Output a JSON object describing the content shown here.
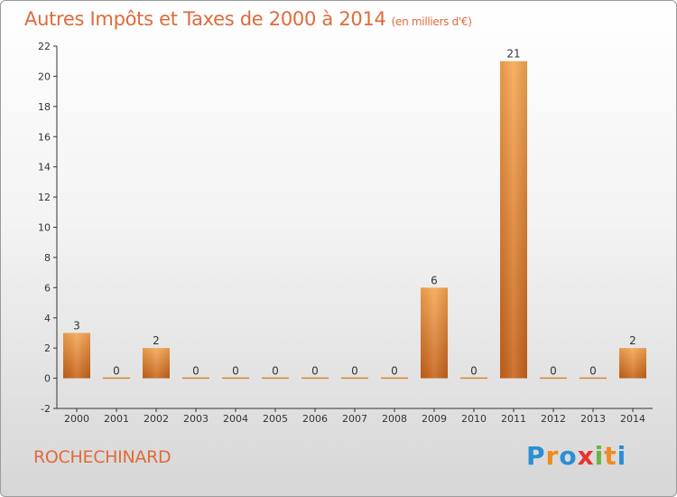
{
  "header": {
    "title": "Autres Impôts et Taxes de 2000 à 2014",
    "unit": "(en milliers d'€)"
  },
  "commune": "ROCHECHINARD",
  "logo": {
    "letters": [
      "P",
      "r",
      "o",
      "x",
      "i",
      "t",
      "i"
    ],
    "colors": [
      "#2a8fd6",
      "#f08a1c",
      "#2a8fd6",
      "#e8342e",
      "#6cb43f",
      "#f08a1c",
      "#2a8fd6"
    ]
  },
  "chart_data": {
    "type": "bar",
    "categories": [
      "2000",
      "2001",
      "2002",
      "2003",
      "2004",
      "2005",
      "2006",
      "2007",
      "2008",
      "2009",
      "2010",
      "2011",
      "2012",
      "2013",
      "2014"
    ],
    "values": [
      3,
      0,
      2,
      0,
      0,
      0,
      0,
      0,
      0,
      6,
      0,
      21,
      0,
      0,
      2
    ],
    "title": "Autres Impôts et Taxes de 2000 à 2014",
    "xlabel": "",
    "ylabel": "",
    "ylim": [
      -2,
      22
    ],
    "yticks": [
      -2,
      0,
      2,
      4,
      6,
      8,
      10,
      12,
      14,
      16,
      18,
      20,
      22
    ],
    "grid": false,
    "bar_color": "#f29a45"
  }
}
